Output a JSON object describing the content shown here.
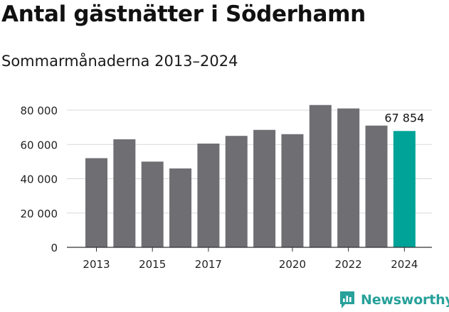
{
  "header": {
    "title": "Antal gästnätter i Söderhamn",
    "subtitle": "Sommarmånaderna 2013–2024"
  },
  "branding": {
    "name": "Newsworthy",
    "logo_icon": "bar-chart-speech-bubble-icon",
    "color": "#27a19a"
  },
  "chart_data": {
    "type": "bar",
    "title": "Antal gästnätter i Söderhamn",
    "subtitle": "Sommarmånaderna 2013–2024",
    "xlabel": "",
    "ylabel": "",
    "categories": [
      "2013",
      "2014",
      "2015",
      "2016",
      "2017",
      "2018",
      "2019",
      "2020",
      "2021",
      "2022",
      "2023",
      "2024"
    ],
    "x_tick_labels": [
      "2013",
      "2015",
      "2017",
      "2020",
      "2022",
      "2024"
    ],
    "values": [
      52000,
      63000,
      50000,
      46000,
      60500,
      65000,
      68500,
      66000,
      83000,
      81000,
      71000,
      67854
    ],
    "ylim": [
      0,
      80000
    ],
    "y_ticks": [
      0,
      20000,
      40000,
      60000,
      80000
    ],
    "y_tick_labels": [
      "0",
      "20 000",
      "40 000",
      "60 000",
      "80 000"
    ],
    "grid": true,
    "bar_color": "#6f6e73",
    "highlight_color": "#00a398",
    "highlight_category": "2024",
    "annotation": {
      "category": "2024",
      "text": "67 854"
    }
  }
}
